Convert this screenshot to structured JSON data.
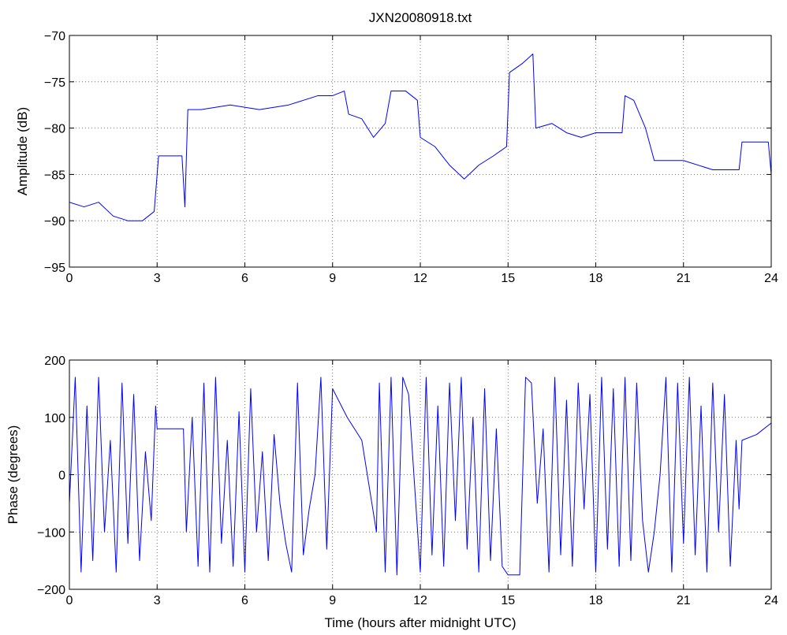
{
  "chart_data": [
    {
      "type": "line",
      "title": "JXN20080918.txt",
      "xlabel": "",
      "ylabel": "Amplitude (dB)",
      "xlim": [
        0,
        24
      ],
      "ylim": [
        -95,
        -70
      ],
      "xticks": [
        0,
        3,
        6,
        9,
        12,
        15,
        18,
        21,
        24
      ],
      "yticks": [
        -95,
        -90,
        -85,
        -80,
        -75,
        -70
      ],
      "grid": true,
      "series_color": "#0000ff",
      "series": [
        {
          "name": "",
          "x": [
            0,
            0.5,
            1.0,
            1.5,
            2.0,
            2.5,
            2.9,
            3.05,
            3.5,
            3.85,
            3.95,
            4.05,
            4.5,
            5.5,
            6.5,
            7.5,
            8.5,
            9.0,
            9.4,
            9.55,
            10.0,
            10.4,
            10.8,
            11.0,
            11.5,
            11.9,
            12.0,
            12.5,
            13.0,
            13.5,
            14.0,
            14.5,
            14.95,
            15.05,
            15.5,
            15.85,
            15.95,
            16.5,
            17.0,
            17.5,
            18.0,
            18.9,
            19.0,
            19.3,
            19.7,
            20.0,
            21.0,
            22.0,
            22.9,
            23.0,
            23.5,
            23.9,
            24.0
          ],
          "y": [
            -88,
            -88.5,
            -88,
            -89.5,
            -90,
            -90,
            -89,
            -83,
            -83,
            -83,
            -88.5,
            -78,
            -78,
            -77.5,
            -78,
            -77.5,
            -76.5,
            -76.5,
            -76,
            -78.5,
            -79,
            -81,
            -79.5,
            -76,
            -76,
            -77,
            -81,
            -82,
            -84,
            -85.5,
            -84,
            -83,
            -82,
            -74,
            -73,
            -72,
            -80,
            -79.5,
            -80.5,
            -81,
            -80.5,
            -80.5,
            -76.5,
            -77,
            -80,
            -83.5,
            -83.5,
            -84.5,
            -84.5,
            -81.5,
            -81.5,
            -81.5,
            -85
          ]
        }
      ]
    },
    {
      "type": "line",
      "title": "",
      "xlabel": "Time (hours after midnight UTC)",
      "ylabel": "Phase (degrees)",
      "xlim": [
        0,
        24
      ],
      "ylim": [
        -200,
        200
      ],
      "xticks": [
        0,
        3,
        6,
        9,
        12,
        15,
        18,
        21,
        24
      ],
      "yticks": [
        -200,
        -100,
        0,
        100,
        200
      ],
      "grid": true,
      "series_color": "#0000ff",
      "series": [
        {
          "name": "",
          "x": [
            0,
            0.2,
            0.4,
            0.6,
            0.8,
            1.0,
            1.2,
            1.4,
            1.6,
            1.8,
            2.0,
            2.2,
            2.4,
            2.6,
            2.8,
            2.95,
            3.0,
            3.5,
            3.9,
            4.0,
            4.2,
            4.4,
            4.6,
            4.8,
            5.0,
            5.2,
            5.4,
            5.6,
            5.8,
            6.0,
            6.2,
            6.4,
            6.6,
            6.8,
            7.0,
            7.2,
            7.4,
            7.6,
            7.8,
            8.0,
            8.2,
            8.4,
            8.6,
            8.8,
            9.0,
            9.5,
            10.0,
            10.5,
            10.6,
            10.8,
            11.0,
            11.2,
            11.4,
            11.6,
            12.0,
            12.2,
            12.4,
            12.6,
            12.8,
            13.0,
            13.2,
            13.4,
            13.6,
            13.8,
            14.0,
            14.2,
            14.4,
            14.6,
            14.8,
            15.0,
            15.4,
            15.6,
            15.8,
            16.0,
            16.2,
            16.4,
            16.6,
            16.8,
            17.0,
            17.2,
            17.4,
            17.6,
            17.8,
            18.0,
            18.2,
            18.4,
            18.6,
            18.8,
            19.0,
            19.2,
            19.4,
            19.6,
            19.8,
            20.0,
            20.2,
            20.4,
            20.6,
            20.8,
            21.0,
            21.2,
            21.4,
            21.6,
            21.8,
            22.0,
            22.2,
            22.4,
            22.6,
            22.8,
            22.9,
            23.0,
            23.5,
            24.0
          ],
          "y": [
            -50,
            170,
            -170,
            120,
            -150,
            170,
            -100,
            60,
            -170,
            160,
            -120,
            140,
            -150,
            40,
            -80,
            120,
            80,
            80,
            80,
            -100,
            100,
            -160,
            160,
            -170,
            170,
            -120,
            60,
            -160,
            110,
            -170,
            150,
            -100,
            40,
            -150,
            70,
            -50,
            -120,
            -170,
            160,
            -140,
            -60,
            0,
            170,
            -130,
            150,
            100,
            60,
            -100,
            160,
            -170,
            170,
            -175,
            170,
            140,
            -170,
            170,
            -140,
            120,
            -160,
            160,
            -80,
            170,
            -130,
            100,
            -170,
            150,
            -150,
            80,
            -160,
            -175,
            -175,
            170,
            160,
            -50,
            80,
            -170,
            170,
            -140,
            130,
            -160,
            160,
            -60,
            140,
            -170,
            170,
            -130,
            150,
            -160,
            170,
            -150,
            160,
            -80,
            -170,
            -100,
            0,
            170,
            -170,
            160,
            -120,
            170,
            -140,
            120,
            -170,
            160,
            -100,
            140,
            -160,
            60,
            -60,
            60,
            70,
            90
          ]
        }
      ]
    }
  ]
}
